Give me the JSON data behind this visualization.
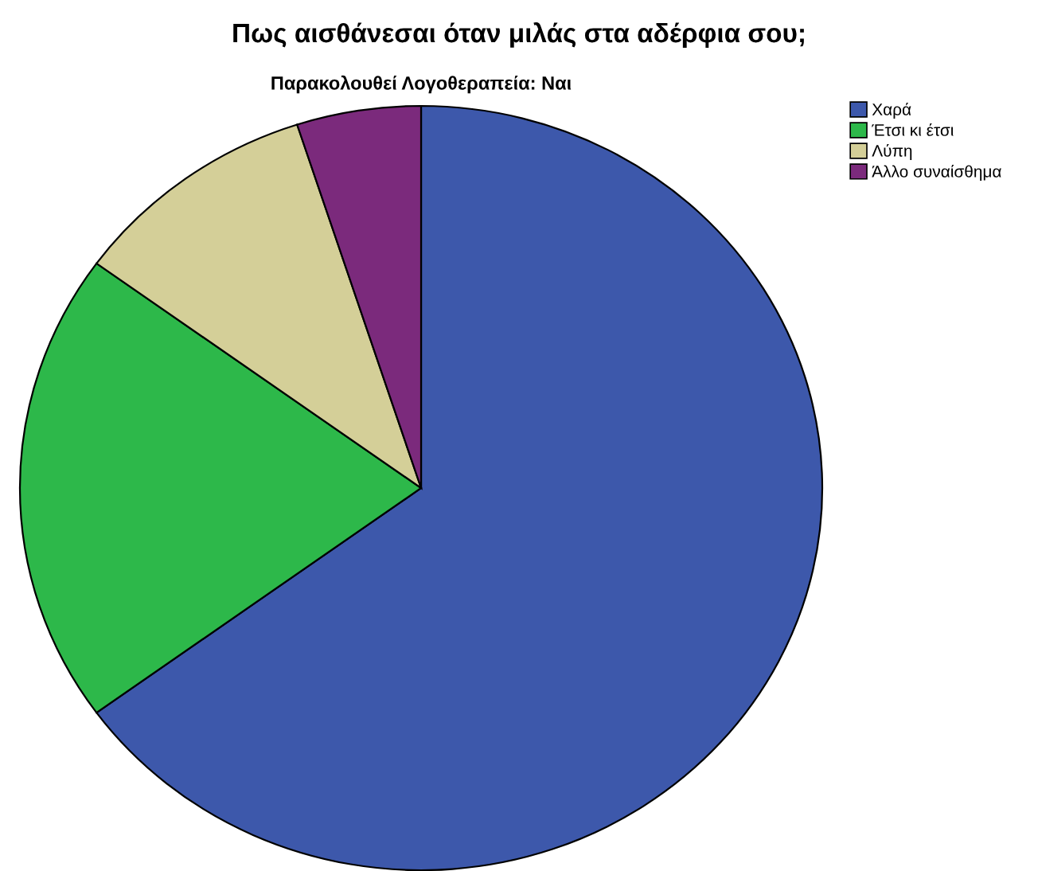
{
  "chart_data": {
    "type": "pie",
    "title": "Πως αισθάνεσαι όταν μιλάς στα αδέρφια σου;",
    "subtitle": "Παρακολουθεί Λογοθεραπεία: Ναι",
    "categories": [
      "Χαρά",
      "Έτσι κι έτσι",
      "Λύπη",
      "Άλλο συναίσθημα"
    ],
    "values": [
      65,
      20,
      10,
      5
    ],
    "colors": [
      "#3d58ab",
      "#2db84a",
      "#d4cf98",
      "#7b2a7c"
    ],
    "legend": "top right"
  }
}
